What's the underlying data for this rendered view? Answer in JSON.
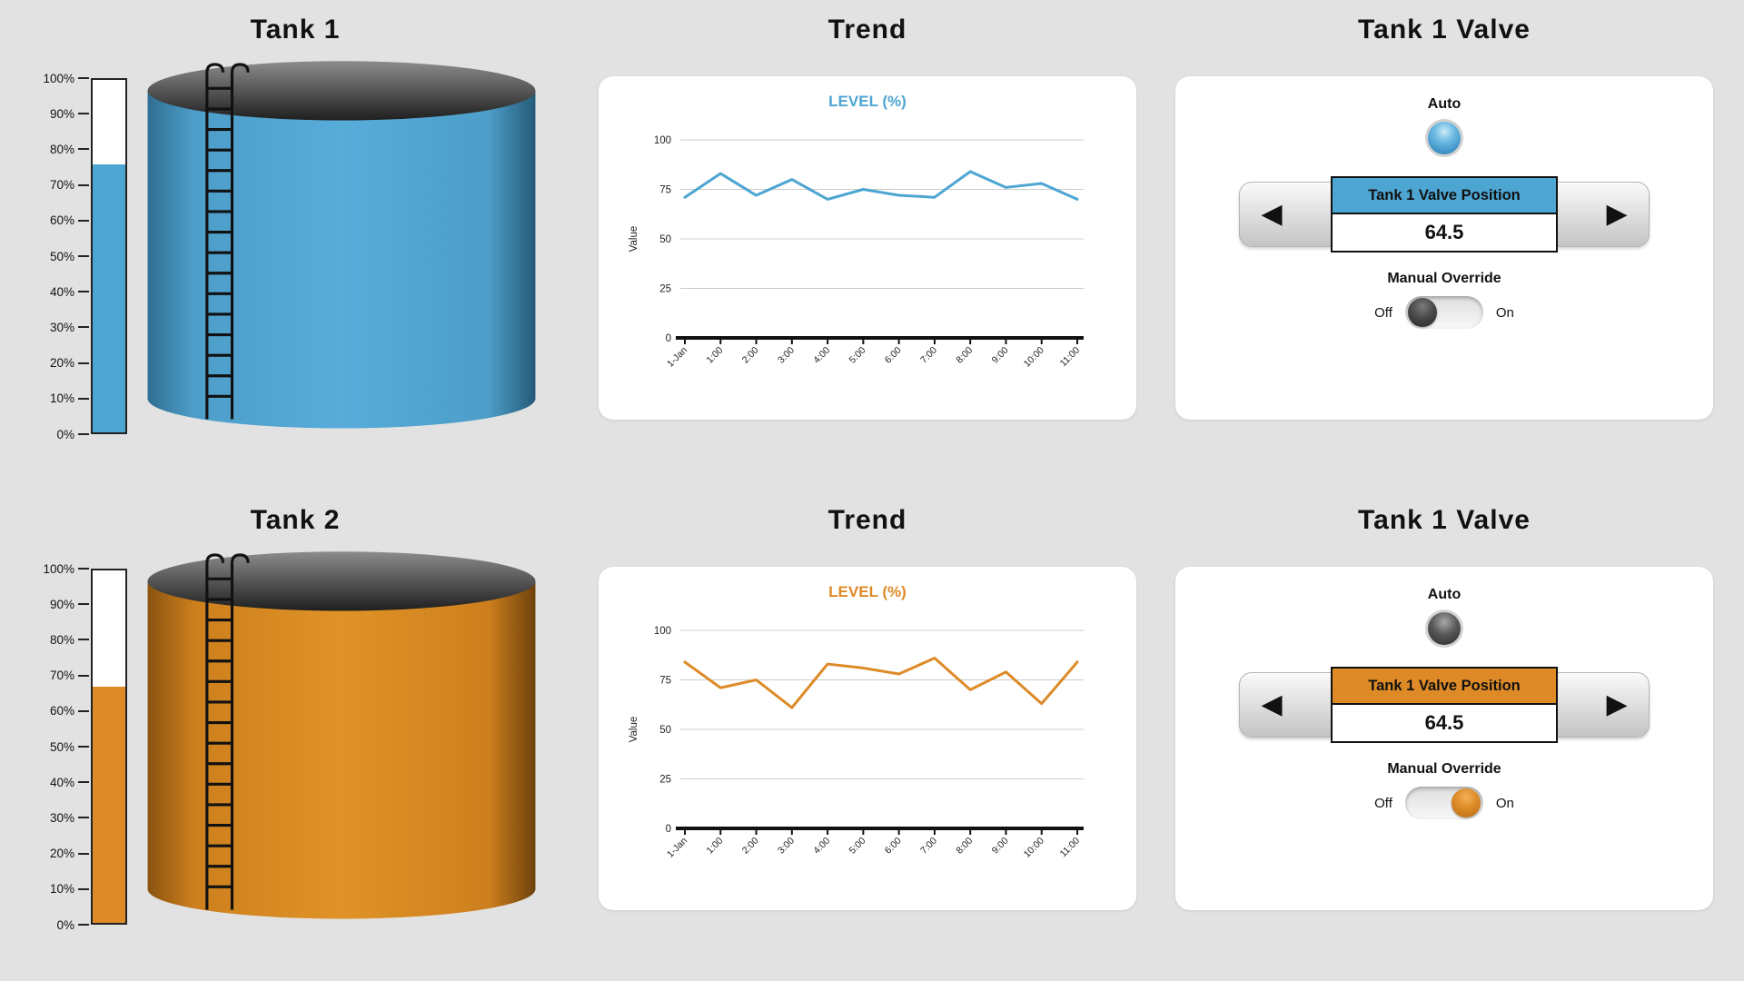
{
  "colors": {
    "blue": "#4DA5D2",
    "orange": "#DD8A27",
    "background": "#E2E2E2"
  },
  "rows": [
    {
      "tank_title": "Tank 1",
      "trend_title": "Trend",
      "accent": "#4DA5D2",
      "gauge": {
        "level_percent": 76,
        "ticks": [
          "0%",
          "10%",
          "20%",
          "30%",
          "40%",
          "50%",
          "60%",
          "70%",
          "80%",
          "90%",
          "100%"
        ]
      },
      "valve": {
        "title": "Tank 1 Valve",
        "auto_label": "Auto",
        "indicator": "lit",
        "position_header": "Tank 1 Valve Position",
        "position_value": "64.5",
        "override_label": "Manual Override",
        "off_label": "Off",
        "on_label": "On",
        "override_state": "off"
      }
    },
    {
      "tank_title": "Tank 2",
      "trend_title": "Trend",
      "accent": "#DD8A27",
      "gauge": {
        "level_percent": 67,
        "ticks": [
          "0%",
          "10%",
          "20%",
          "30%",
          "40%",
          "50%",
          "60%",
          "70%",
          "80%",
          "90%",
          "100%"
        ]
      },
      "valve": {
        "title": "Tank 1 Valve",
        "auto_label": "Auto",
        "indicator": "unlit",
        "position_header": "Tank 1 Valve Position",
        "position_value": "64.5",
        "override_label": "Manual Override",
        "off_label": "Off",
        "on_label": "On",
        "override_state": "on"
      }
    }
  ],
  "chart_data": [
    {
      "type": "line",
      "title": "LEVEL (%)",
      "xlabel": "",
      "ylabel": "Value",
      "x": [
        "1-Jan",
        "1:00",
        "2:00",
        "3:00",
        "4:00",
        "5:00",
        "6:00",
        "7:00",
        "8:00",
        "9:00",
        "10:00",
        "11:00"
      ],
      "values": [
        71,
        83,
        72,
        80,
        70,
        75,
        72,
        71,
        84,
        76,
        78,
        70
      ],
      "ylim": [
        0,
        100
      ],
      "yticks": [
        0,
        25,
        50,
        75,
        100
      ],
      "line_color": "#4DA5D2",
      "grid": true,
      "legend": "none"
    },
    {
      "type": "line",
      "title": "LEVEL (%)",
      "xlabel": "",
      "ylabel": "Value",
      "x": [
        "1-Jan",
        "1:00",
        "2:00",
        "3:00",
        "4:00",
        "5:00",
        "6:00",
        "7:00",
        "8:00",
        "9:00",
        "10:00",
        "11:00"
      ],
      "values": [
        84,
        71,
        75,
        61,
        83,
        81,
        78,
        86,
        70,
        79,
        63,
        84
      ],
      "ylim": [
        0,
        100
      ],
      "yticks": [
        0,
        25,
        50,
        75,
        100
      ],
      "line_color": "#DD8A27",
      "grid": true,
      "legend": "none"
    }
  ]
}
